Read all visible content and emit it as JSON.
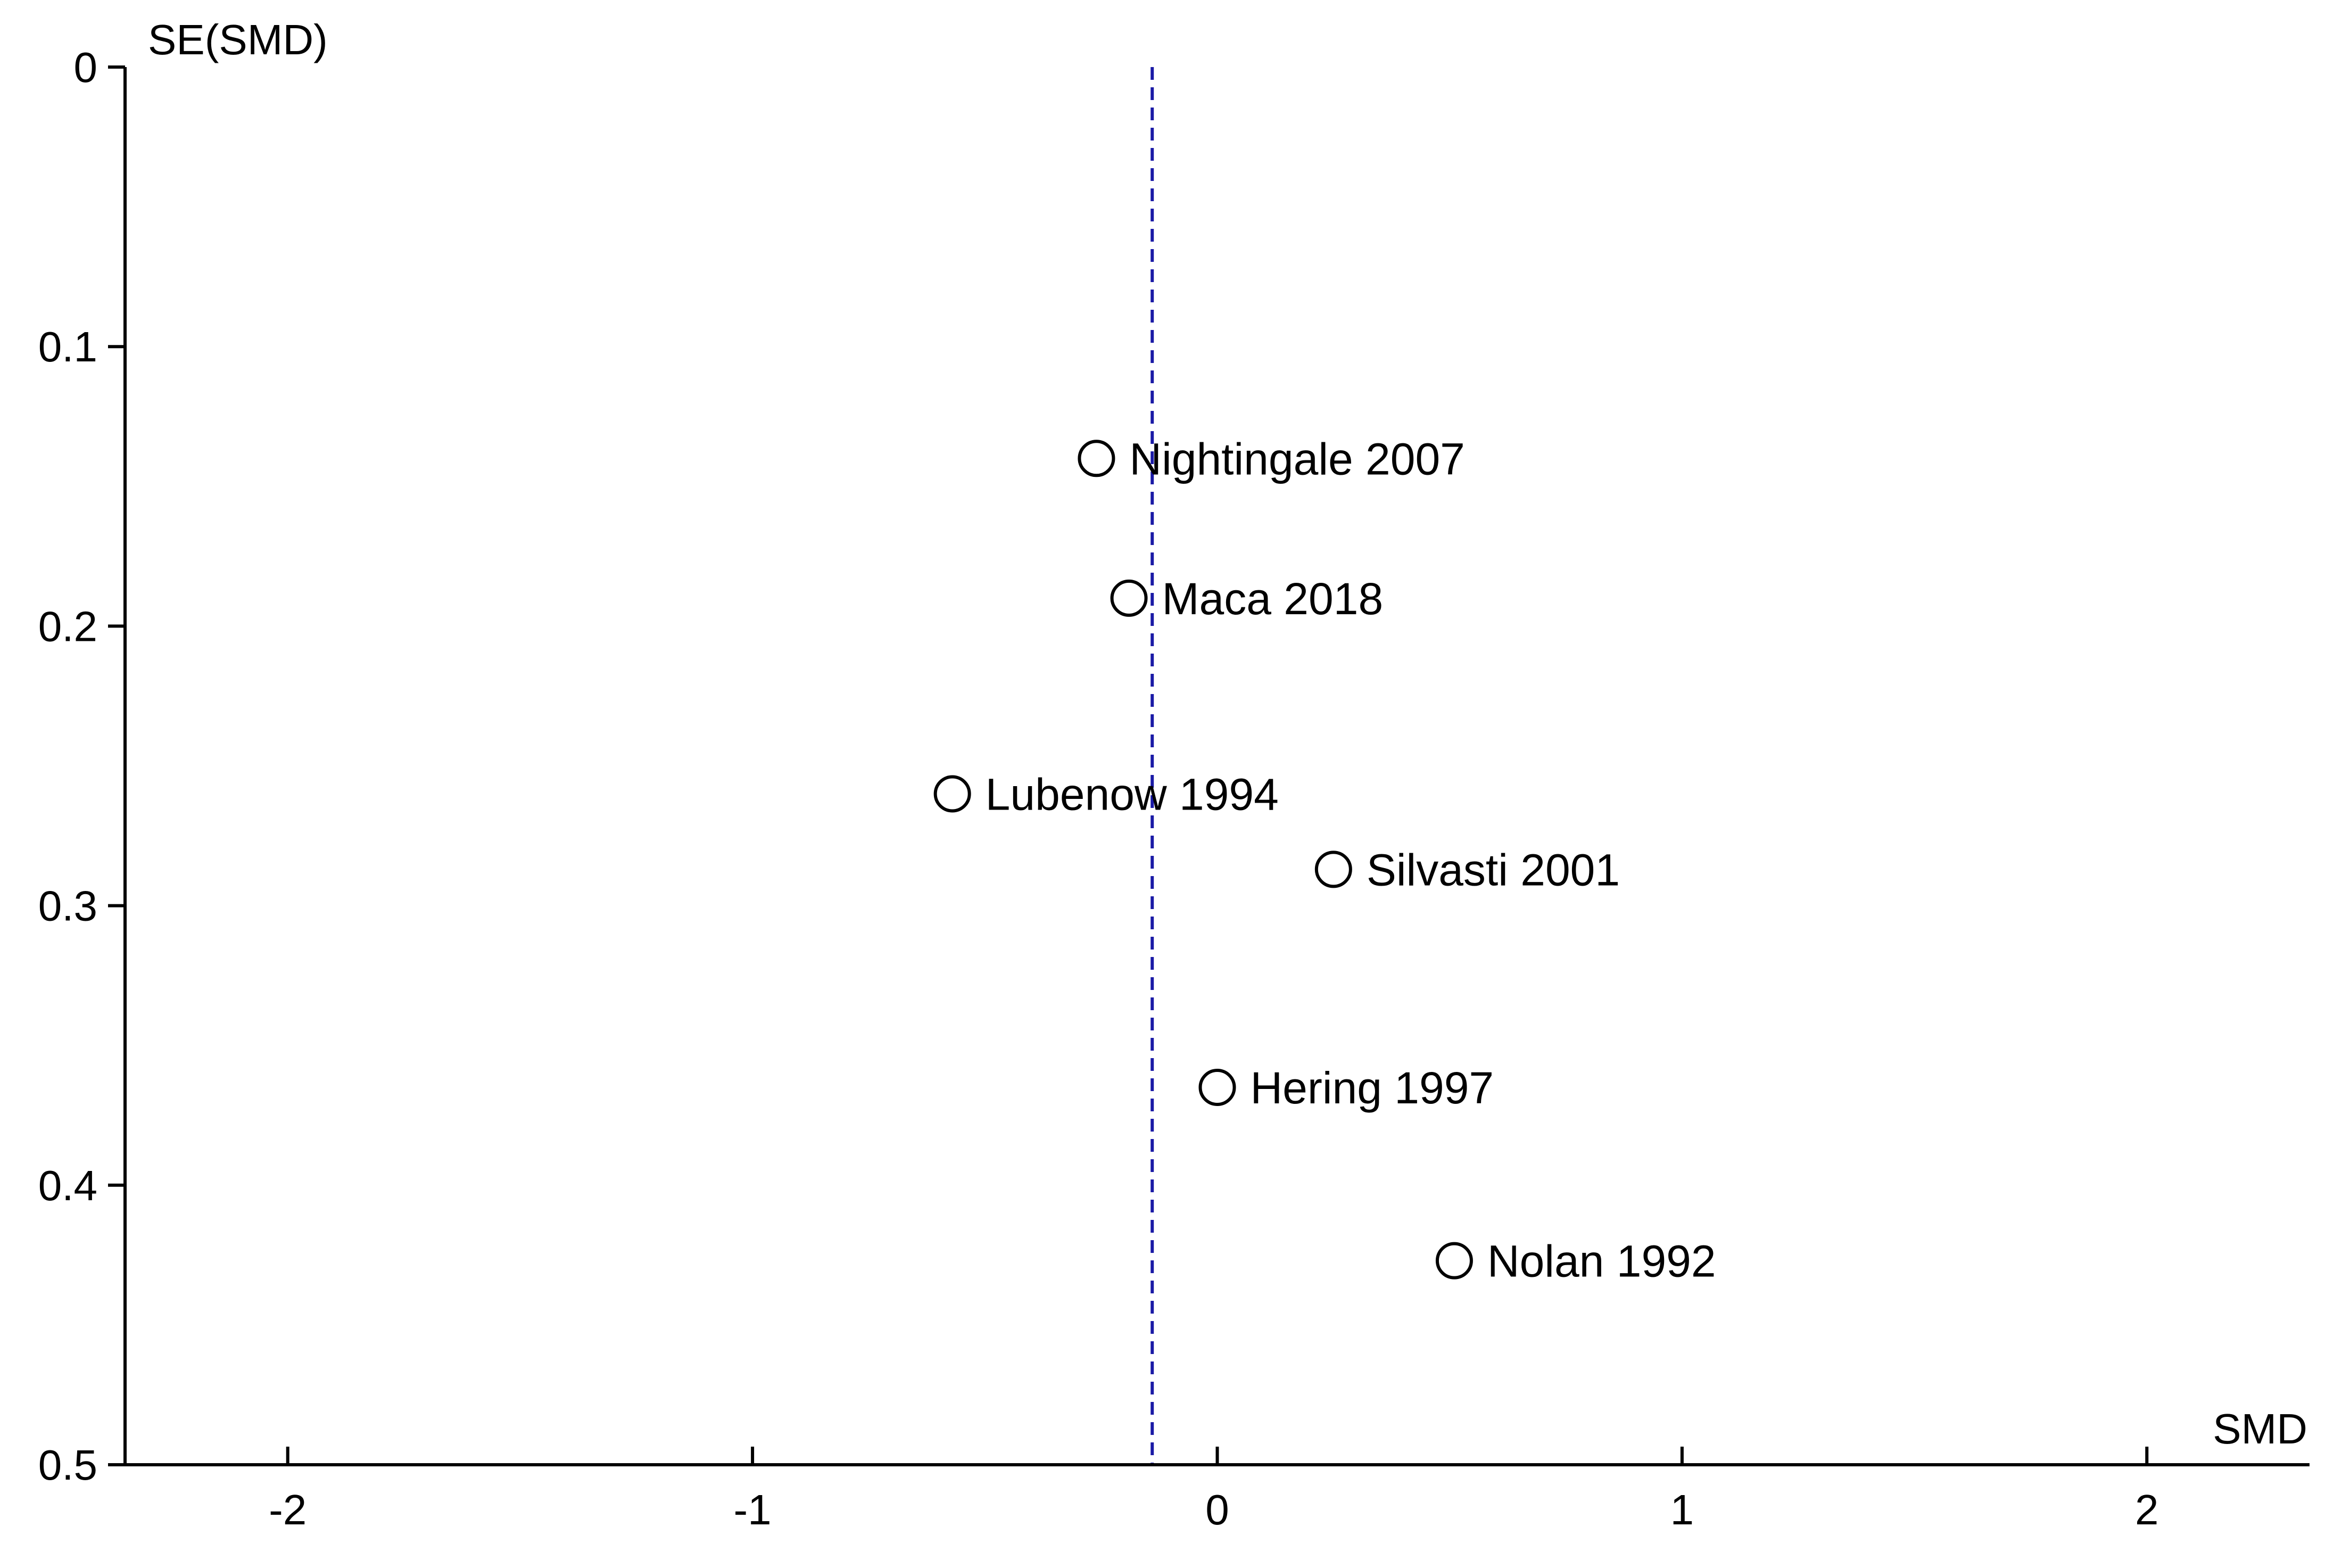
{
  "chart_data": {
    "type": "scatter",
    "title": "",
    "xlabel": "SMD",
    "ylabel": "SE(SMD)",
    "xlim": [
      -2.35,
      2.35
    ],
    "ylim": [
      0,
      0.5
    ],
    "y_inverted": true,
    "grid": false,
    "x_ticks": [
      -2,
      -1,
      0,
      1,
      2
    ],
    "x_tick_labels": [
      "-2",
      "-1",
      "0",
      "1",
      "2"
    ],
    "y_ticks": [
      0,
      0.1,
      0.2,
      0.3,
      0.4,
      0.5
    ],
    "y_tick_labels": [
      "0",
      "0.1",
      "0.2",
      "0.3",
      "0.4",
      "0.5"
    ],
    "reference_line": {
      "x": -0.14,
      "style": "dashed",
      "color": "#1a1aa6"
    },
    "points": [
      {
        "label": "Nightingale 2007",
        "x": -0.26,
        "y": 0.14
      },
      {
        "label": "Maca 2018",
        "x": -0.19,
        "y": 0.19
      },
      {
        "label": "Lubenow 1994",
        "x": -0.57,
        "y": 0.26
      },
      {
        "label": "Silvasti 2001",
        "x": 0.25,
        "y": 0.287
      },
      {
        "label": "Hering 1997",
        "x": 0.0,
        "y": 0.365
      },
      {
        "label": "Nolan 1992",
        "x": 0.51,
        "y": 0.427
      }
    ],
    "marker": {
      "shape": "open-circle",
      "color": "#000000"
    }
  }
}
